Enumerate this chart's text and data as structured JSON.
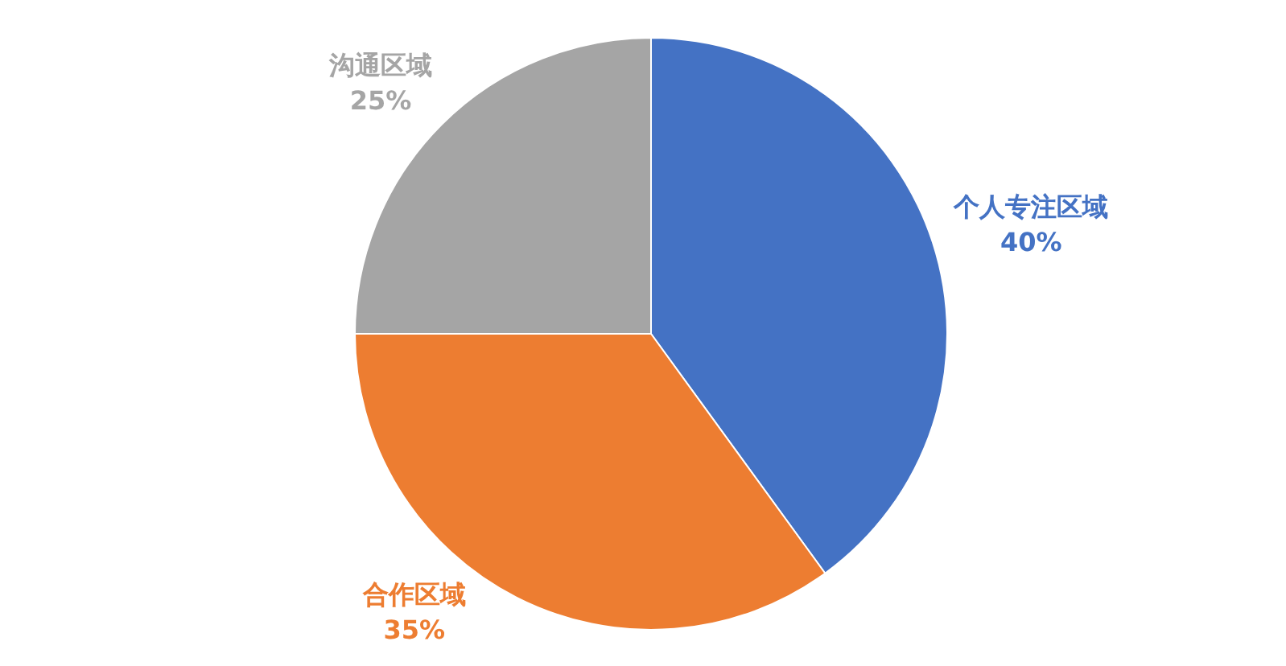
{
  "chart_data": {
    "type": "pie",
    "categories": [
      "个人专注区域",
      "合作区域",
      "沟通区域"
    ],
    "values": [
      40,
      35,
      25
    ],
    "colors": [
      "#4472c4",
      "#ed7d31",
      "#a5a5a5"
    ],
    "value_labels": [
      "40%",
      "35%",
      "25%"
    ]
  }
}
